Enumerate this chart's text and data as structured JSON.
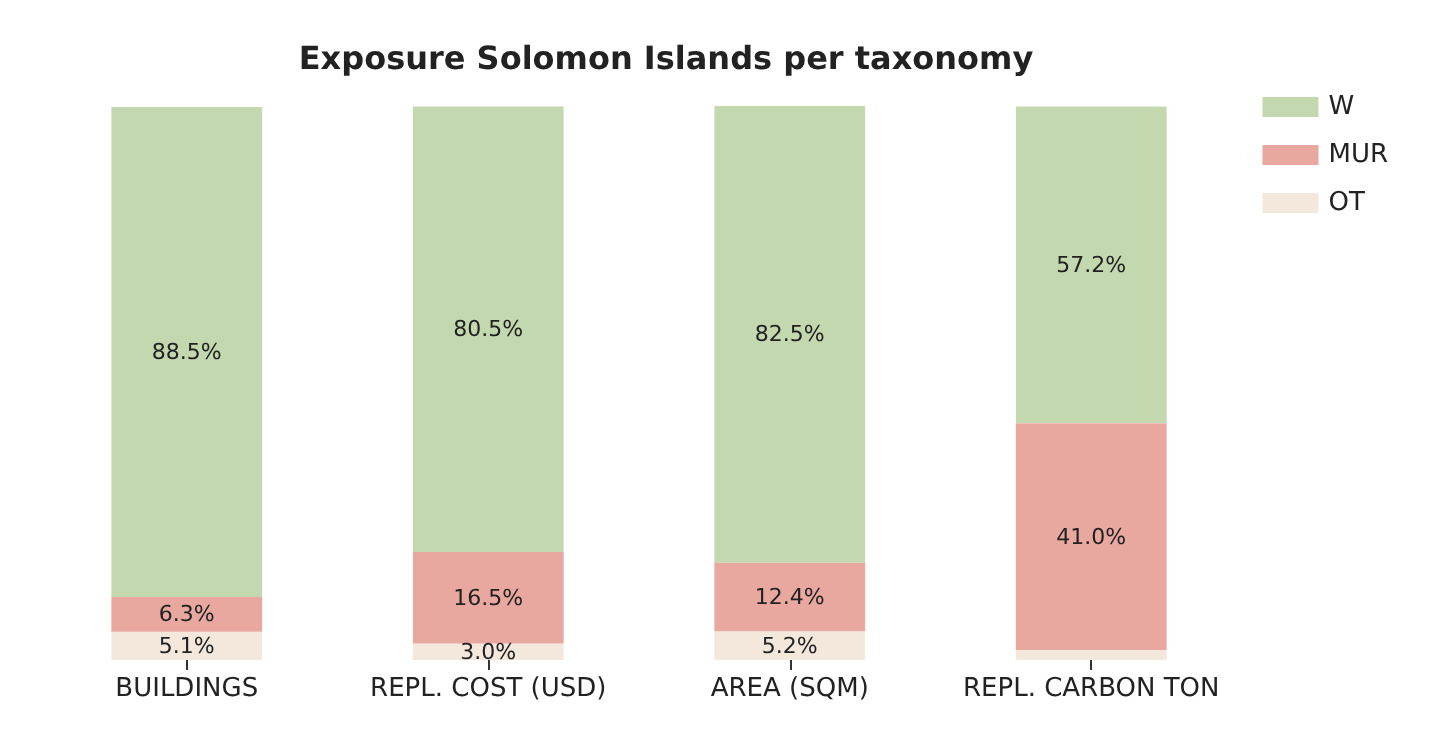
{
  "chart_data": {
    "type": "bar",
    "title": "Exposure Solomon Islands per taxonomy",
    "categories": [
      "BUILDINGS",
      "REPL. COST (USD)",
      "AREA (SQM)",
      "REPL. CARBON TON"
    ],
    "stacked": true,
    "legend": "top right",
    "series": [
      {
        "name": "OT",
        "color": "#f4e8dc",
        "values": [
          5.1,
          3.0,
          5.2,
          1.8
        ],
        "value_labels": [
          "5.1%",
          "3.0%",
          "5.2%",
          null
        ]
      },
      {
        "name": "MUR",
        "color": "#e8a8a0",
        "values": [
          6.3,
          16.5,
          12.4,
          41.0
        ],
        "value_labels": [
          "6.3%",
          "16.5%",
          "12.4%",
          "41.0%"
        ]
      },
      {
        "name": "W",
        "color": "#c4d8b0",
        "values": [
          88.5,
          80.5,
          82.5,
          57.2
        ],
        "value_labels": [
          "88.5%",
          "80.5%",
          "82.5%",
          "57.2%"
        ]
      }
    ]
  }
}
